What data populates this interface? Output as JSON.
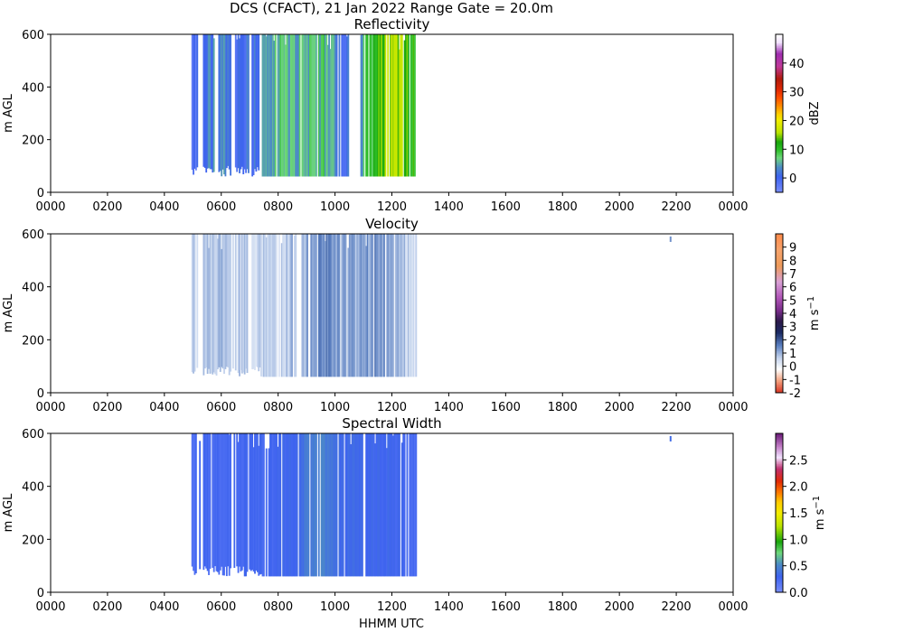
{
  "figure": {
    "suptitle": "DCS (CFACT), 21 Jan 2022 Range Gate = 20.0m",
    "xlabel": "HHMM UTC"
  },
  "chart_data": [
    {
      "type": "heatmap",
      "title": "Reflectivity",
      "ylabel": "m AGL",
      "xlim": [
        0,
        24
      ],
      "ylim": [
        0,
        600
      ],
      "x_ticks": [
        0,
        2,
        4,
        6,
        8,
        10,
        12,
        14,
        16,
        18,
        20,
        22,
        24
      ],
      "x_tick_labels": [
        "0000",
        "0200",
        "0400",
        "0600",
        "0800",
        "1000",
        "1200",
        "1400",
        "1600",
        "1800",
        "2000",
        "2200",
        "0000"
      ],
      "y_ticks": [
        0,
        200,
        400,
        600
      ],
      "y_tick_labels": [
        "0",
        "200",
        "400",
        "600"
      ],
      "colorbar": {
        "label": "dBZ",
        "range": [
          -5,
          50
        ],
        "ticks": [
          0,
          10,
          20,
          30,
          40
        ],
        "tick_labels": [
          "0",
          "10",
          "20",
          "30",
          "40"
        ],
        "stops": [
          [
            0,
            "#7a8ffb"
          ],
          [
            0.1,
            "#3e63ef"
          ],
          [
            0.16,
            "#4d8cc4"
          ],
          [
            0.22,
            "#6ed77b"
          ],
          [
            0.27,
            "#2fbf2a"
          ],
          [
            0.32,
            "#18a60c"
          ],
          [
            0.38,
            "#bce400"
          ],
          [
            0.46,
            "#f3ee00"
          ],
          [
            0.5,
            "#ffcc00"
          ],
          [
            0.55,
            "#ff8a00"
          ],
          [
            0.6,
            "#ff4f00"
          ],
          [
            0.65,
            "#e22a04"
          ],
          [
            0.72,
            "#b01a0b"
          ],
          [
            0.8,
            "#c0399a"
          ],
          [
            0.88,
            "#9e2db0"
          ],
          [
            0.95,
            "#f2e3ff"
          ],
          [
            1,
            "#ffffff"
          ]
        ]
      },
      "echo": {
        "x_start": 4.95,
        "x_end": 12.85,
        "y_top": 600,
        "y_bottom_min": 60,
        "profile": [
          [
            4.95,
            -2
          ],
          [
            5.5,
            2
          ],
          [
            6.0,
            3
          ],
          [
            6.5,
            -1
          ],
          [
            7.0,
            1
          ],
          [
            7.4,
            3
          ],
          [
            8.0,
            6
          ],
          [
            8.6,
            5
          ],
          [
            9.2,
            7
          ],
          [
            9.8,
            6
          ],
          [
            10.2,
            1
          ],
          [
            10.8,
            3
          ],
          [
            11.2,
            9
          ],
          [
            11.8,
            15
          ],
          [
            12.2,
            16
          ],
          [
            12.6,
            14
          ],
          [
            12.85,
            8
          ]
        ],
        "gaps": [
          [
            5.15,
            5.35
          ],
          [
            5.72,
            5.82
          ],
          [
            6.3,
            6.45
          ],
          [
            6.95,
            7.05
          ],
          [
            7.28,
            7.38
          ],
          [
            10.45,
            10.85
          ]
        ],
        "variability": 6
      }
    },
    {
      "type": "heatmap",
      "title": "Velocity",
      "ylabel": "m s$^{-1}$ AGL",
      "ylabel_axis": "m AGL",
      "xlim": [
        0,
        24
      ],
      "ylim": [
        0,
        600
      ],
      "x_ticks": [
        0,
        2,
        4,
        6,
        8,
        10,
        12,
        14,
        16,
        18,
        20,
        22,
        24
      ],
      "x_tick_labels": [
        "0000",
        "0200",
        "0400",
        "0600",
        "0800",
        "1000",
        "1200",
        "1400",
        "1600",
        "1800",
        "2000",
        "2200",
        "0000"
      ],
      "y_ticks": [
        0,
        200,
        400,
        600
      ],
      "y_tick_labels": [
        "0",
        "200",
        "400",
        "600"
      ],
      "colorbar": {
        "label": "m s",
        "label_exp": "−1",
        "range": [
          -2,
          10
        ],
        "ticks": [
          -2,
          -1,
          0,
          1,
          2,
          3,
          4,
          5,
          6,
          7,
          8,
          9
        ],
        "tick_labels": [
          "-2",
          "-1",
          "0",
          "1",
          "2",
          "3",
          "4",
          "5",
          "6",
          "7",
          "8",
          "9"
        ],
        "stops": [
          [
            0,
            "#d7301f"
          ],
          [
            0.08,
            "#f4a582"
          ],
          [
            0.15,
            "#ffffff"
          ],
          [
            0.22,
            "#c6d5ee"
          ],
          [
            0.3,
            "#5a7fc0"
          ],
          [
            0.38,
            "#1b2a63"
          ],
          [
            0.45,
            "#2b1a4a"
          ],
          [
            0.52,
            "#7a2d8a"
          ],
          [
            0.6,
            "#b055b8"
          ],
          [
            0.7,
            "#d9a1d6"
          ],
          [
            0.8,
            "#ee9b5a"
          ],
          [
            0.9,
            "#f7a46d"
          ],
          [
            1,
            "#ff8b4a"
          ]
        ]
      },
      "echo": {
        "x_start": 4.95,
        "x_end": 12.85,
        "y_top": 600,
        "y_bottom_min": 60,
        "profile": [
          [
            4.95,
            0.6
          ],
          [
            6.0,
            0.8
          ],
          [
            7.0,
            0.6
          ],
          [
            8.0,
            0.7
          ],
          [
            9.0,
            1.1
          ],
          [
            9.8,
            1.5
          ],
          [
            10.6,
            1.0
          ],
          [
            11.5,
            1.4
          ],
          [
            12.3,
            0.9
          ],
          [
            12.85,
            0.4
          ]
        ],
        "gaps": [
          [
            5.15,
            5.35
          ],
          [
            6.3,
            6.42
          ],
          [
            6.95,
            7.02
          ]
        ],
        "variability": 0.8,
        "blip_x": 21.8
      }
    },
    {
      "type": "heatmap",
      "title": "Spectral Width",
      "ylabel": "m AGL",
      "xlim": [
        0,
        24
      ],
      "ylim": [
        0,
        600
      ],
      "x_ticks": [
        0,
        2,
        4,
        6,
        8,
        10,
        12,
        14,
        16,
        18,
        20,
        22,
        24
      ],
      "x_tick_labels": [
        "0000",
        "0200",
        "0400",
        "0600",
        "0800",
        "1000",
        "1200",
        "1400",
        "1600",
        "1800",
        "2000",
        "2200",
        "0000"
      ],
      "y_ticks": [
        0,
        200,
        400,
        600
      ],
      "y_tick_labels": [
        "0",
        "200",
        "400",
        "600"
      ],
      "colorbar": {
        "label": "m s",
        "label_exp": "−1",
        "range": [
          0,
          3
        ],
        "ticks": [
          0,
          0.5,
          1,
          1.5,
          2,
          2.5
        ],
        "tick_labels": [
          "0.0",
          "0.5",
          "1.0",
          "1.5",
          "2.0",
          "2.5"
        ],
        "stops": [
          [
            0,
            "#7a8ffb"
          ],
          [
            0.1,
            "#3e63ef"
          ],
          [
            0.18,
            "#4d8cc4"
          ],
          [
            0.25,
            "#6ed77b"
          ],
          [
            0.32,
            "#18a60c"
          ],
          [
            0.42,
            "#bce400"
          ],
          [
            0.5,
            "#f3ee00"
          ],
          [
            0.57,
            "#ffcc00"
          ],
          [
            0.63,
            "#ff7a00"
          ],
          [
            0.7,
            "#e22a04"
          ],
          [
            0.78,
            "#c03070"
          ],
          [
            0.85,
            "#f2e3ff"
          ],
          [
            0.92,
            "#c27dc6"
          ],
          [
            1,
            "#6a1a78"
          ]
        ]
      },
      "echo": {
        "x_start": 4.95,
        "x_end": 12.85,
        "y_top": 600,
        "y_bottom_min": 60,
        "profile": [
          [
            4.95,
            0.25
          ],
          [
            7.0,
            0.28
          ],
          [
            8.5,
            0.3
          ],
          [
            9.0,
            0.42
          ],
          [
            9.5,
            0.5
          ],
          [
            10.0,
            0.35
          ],
          [
            11.0,
            0.32
          ],
          [
            12.0,
            0.3
          ],
          [
            12.85,
            0.25
          ]
        ],
        "gaps": [
          [
            5.15,
            5.35
          ],
          [
            6.3,
            6.42
          ],
          [
            6.95,
            7.02
          ]
        ],
        "variability": 0.1,
        "blip_x": 21.8
      }
    }
  ]
}
